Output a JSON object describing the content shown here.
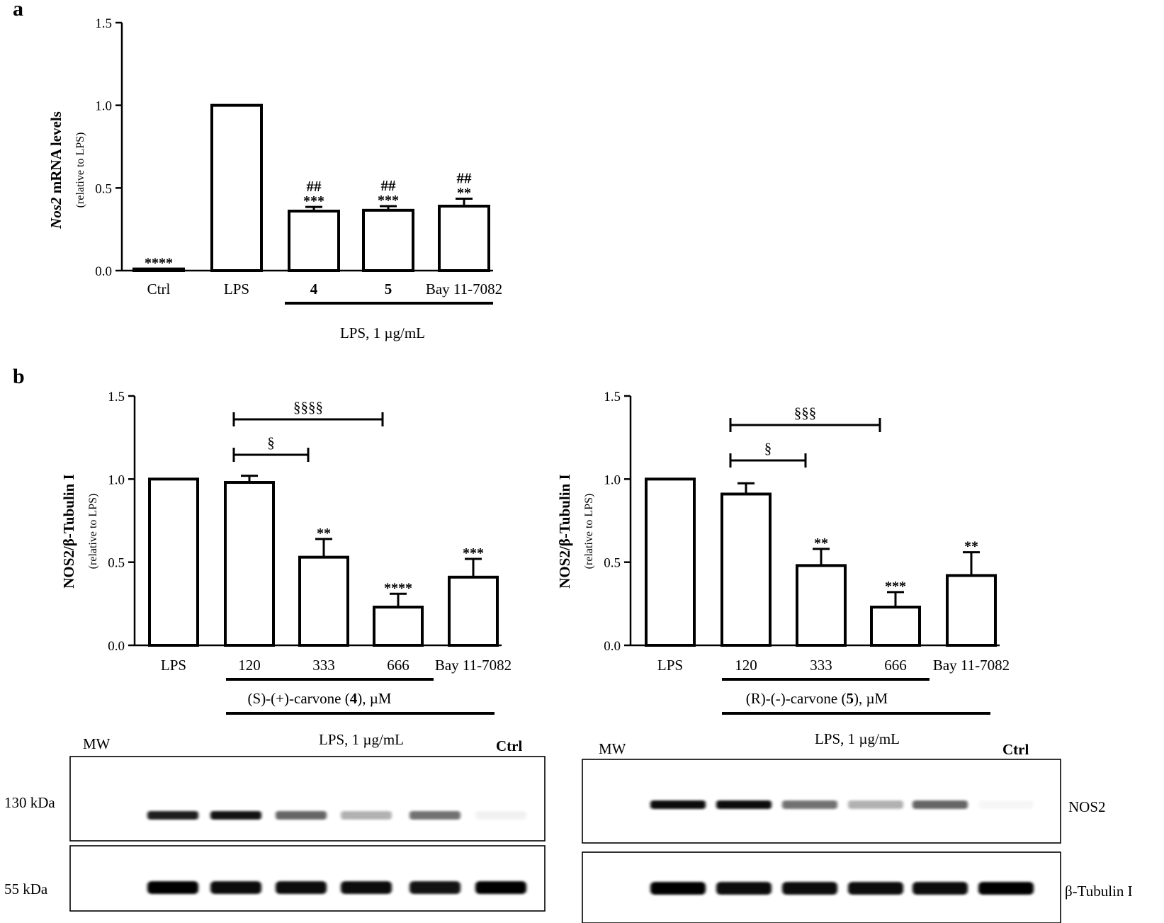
{
  "panel_a": {
    "letter": "a",
    "group_label": "LPS, 1 µg/mL"
  },
  "panel_b": {
    "letter": "b",
    "left_group_label_pre": "(S)-(+)-carvone (",
    "left_group_label_num": "4",
    "left_group_label_post": "), µM",
    "left_lps_label": "LPS, 1 µg/mL",
    "right_group_label_pre": "(R)-(-)-carvone (",
    "right_group_label_num": "5",
    "right_group_label_post": "), µM"
  },
  "chart_data": [
    {
      "id": "nos2-mrna",
      "type": "bar",
      "ylabel_italic": "Nos2",
      "ylabel_rest": " mRNA levels",
      "ylabel_sub": "(relative to LPS)",
      "ylim": [
        0,
        1.5
      ],
      "yticks": [
        "0.0",
        "0.5",
        "1.0",
        "1.5"
      ],
      "categories": [
        "Ctrl",
        "LPS",
        "4",
        "5",
        "Bay 11-7082"
      ],
      "values": [
        0.01,
        1.0,
        0.36,
        0.365,
        0.39
      ],
      "errors": [
        0,
        0,
        0.025,
        0.025,
        0.045
      ],
      "stars": [
        "****",
        "",
        "***",
        "***",
        "**"
      ],
      "hash": [
        "",
        "",
        "##",
        "##",
        "##"
      ]
    },
    {
      "id": "nos2-protein-s",
      "type": "bar",
      "ylabel": "NOS2/β-Tubulin I",
      "ylabel_sub": "(relative to LPS)",
      "ylim": [
        0,
        1.5
      ],
      "yticks": [
        "0.0",
        "0.5",
        "1.0",
        "1.5"
      ],
      "categories": [
        "LPS",
        "120",
        "333",
        "666",
        "Bay 11-7082"
      ],
      "values": [
        1.0,
        0.98,
        0.53,
        0.23,
        0.41
      ],
      "errors": [
        0,
        0.04,
        0.11,
        0.08,
        0.11
      ],
      "stars": [
        "",
        "",
        "**",
        "****",
        "***"
      ],
      "brackets": [
        {
          "from": "120",
          "to": "333",
          "label": "§"
        },
        {
          "from": "120",
          "to": "666",
          "label": "§§§§"
        }
      ]
    },
    {
      "id": "nos2-protein-r",
      "type": "bar",
      "ylabel": "NOS2/β-Tubulin I",
      "ylabel_sub": "(relative to LPS)",
      "ylim": [
        0,
        1.5
      ],
      "yticks": [
        "0.0",
        "0.5",
        "1.0",
        "1.5"
      ],
      "categories": [
        "LPS",
        "120",
        "333",
        "666",
        "Bay 11-7082"
      ],
      "values": [
        1.0,
        0.91,
        0.48,
        0.23,
        0.42
      ],
      "errors": [
        0,
        0.065,
        0.1,
        0.09,
        0.14
      ],
      "stars": [
        "",
        "",
        "**",
        "***",
        "**"
      ],
      "brackets": [
        {
          "from": "120",
          "to": "333",
          "label": "§"
        },
        {
          "from": "120",
          "to": "666",
          "label": "§§§"
        }
      ]
    }
  ],
  "blot_left": {
    "mw_label": "MW",
    "lps_label": "LPS, 1 µg/mL",
    "ctrl_label": "Ctrl",
    "kda_top": "130 kDa",
    "kda_bottom": "55  kDa",
    "top_band_intensity": [
      0,
      0.88,
      0.92,
      0.6,
      0.3,
      0.55,
      0.05
    ],
    "bottom_band_intensity": [
      0,
      1.0,
      0.95,
      0.95,
      0.95,
      0.92,
      1.0
    ]
  },
  "blot_right": {
    "mw_label": "MW",
    "lps_label": "LPS, 1 µg/mL",
    "ctrl_label": "Ctrl",
    "protein_top": "NOS2",
    "protein_bottom": "β-Tubulin I",
    "top_band_intensity": [
      0,
      0.95,
      0.95,
      0.55,
      0.3,
      0.6,
      0.03
    ],
    "bottom_band_intensity": [
      0,
      1.0,
      0.95,
      0.95,
      0.95,
      0.95,
      1.0
    ]
  }
}
